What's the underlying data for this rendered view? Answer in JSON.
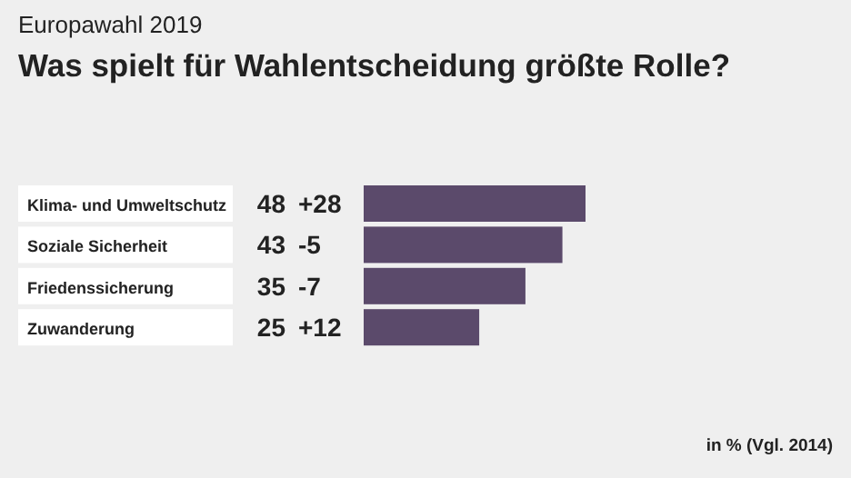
{
  "chart_data": {
    "type": "bar",
    "orientation": "horizontal",
    "subtitle": "Europawahl 2019",
    "title": "Was spielt für Wahlentscheidung größte Rolle?",
    "categories": [
      "Klima- und Umweltschutz",
      "Soziale Sicherheit",
      "Friedenssicherung",
      "Zuwanderung"
    ],
    "values": [
      48,
      43,
      35,
      25
    ],
    "color": "#5b4a6b",
    "data_labels": true,
    "annotations": [
      "+28",
      "-5",
      "-7",
      "+12",
      "in % (Vgl. 2014)"
    ]
  }
}
